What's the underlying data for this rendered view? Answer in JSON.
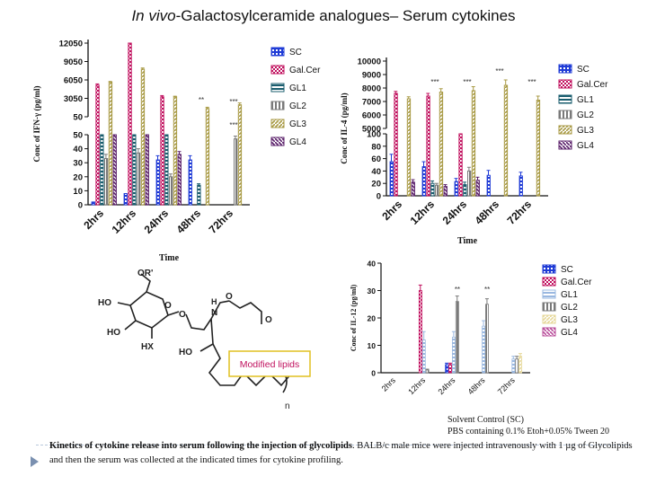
{
  "title": {
    "italic": "In vivo",
    "rest": "-Galactosylceramide analogues– Serum cytokines"
  },
  "colors": {
    "SC": "#1f3bd6",
    "GalCer": "#c0105e",
    "GL1": "#1a5d6e",
    "GL2": "#7a7a7a",
    "GL3": "#a89a44",
    "GL4": "#5a1f6a",
    "GL1_light": "#9ab8e0",
    "GL3_light": "#e6d89a",
    "GL4_light": "#b84b9a"
  },
  "chart_data": [
    {
      "id": "ifn",
      "type": "bar",
      "ylabel": "Conc of IFN-γ (pg/ml)",
      "xlabel": "Time",
      "categories": [
        "2hrs",
        "12hrs",
        "24hrs",
        "48hrs",
        "72hrs"
      ],
      "axis_segments": [
        {
          "range": [
            0,
            50
          ],
          "ticks": [
            "0",
            "10",
            "20",
            "30",
            "40",
            "50"
          ]
        },
        {
          "range": [
            50,
            12050
          ],
          "ticks": [
            "50",
            "3050",
            "6050",
            "9050",
            "12050"
          ]
        }
      ],
      "series": [
        {
          "name": "SC",
          "values": [
            2,
            8,
            32,
            32,
            null
          ],
          "errors": [
            0,
            0,
            3,
            3,
            0
          ]
        },
        {
          "name": "Gal.Cer",
          "values": [
            5200,
            13800,
            3300,
            0,
            null
          ],
          "errors": [
            200,
            300,
            200,
            0,
            0
          ]
        },
        {
          "name": "GL1",
          "values": [
            50,
            50,
            50,
            14,
            null
          ],
          "errors": [
            0,
            0,
            0,
            1,
            0
          ]
        },
        {
          "name": "GL2",
          "values": [
            33,
            37,
            20,
            0,
            47
          ],
          "errors": [
            3,
            3,
            2,
            0,
            2
          ]
        },
        {
          "name": "GL3",
          "values": [
            5700,
            7800,
            3300,
            1400,
            2000
          ],
          "errors": [
            100,
            200,
            100,
            200,
            300
          ]
        },
        {
          "name": "GL4",
          "values": [
            50,
            50,
            36,
            null,
            null
          ],
          "errors": [
            0,
            0,
            2,
            0,
            0
          ]
        }
      ],
      "annotations": [
        {
          "text": "**",
          "category": "48hrs"
        },
        {
          "text": "***",
          "category": "72hrs"
        },
        {
          "text": "***",
          "category": "72hrs"
        }
      ],
      "legend": [
        "SC",
        "Gal.Cer",
        "GL1",
        "GL2",
        "GL3",
        "GL4"
      ]
    },
    {
      "id": "il4",
      "type": "bar",
      "ylabel": "Conc of IL-4 (pg/ml)",
      "xlabel": "Time",
      "categories": [
        "2hrs",
        "12hrs",
        "24hrs",
        "48hrs",
        "72hrs"
      ],
      "axis_segments": [
        {
          "range": [
            0,
            100
          ],
          "ticks": [
            "0",
            "20",
            "40",
            "60",
            "80",
            "100"
          ]
        },
        {
          "range": [
            5000,
            10000
          ],
          "ticks": [
            "5000",
            "6000",
            "7000",
            "8000",
            "9000",
            "10000"
          ]
        }
      ],
      "series": [
        {
          "name": "SC",
          "values": [
            55,
            47,
            23,
            33,
            32
          ],
          "errors": [
            12,
            8,
            5,
            8,
            6
          ]
        },
        {
          "name": "Gal.Cer",
          "values": [
            7600,
            7400,
            100,
            null,
            null
          ],
          "errors": [
            150,
            200,
            0,
            0,
            0
          ]
        },
        {
          "name": "GL1",
          "values": [
            null,
            20,
            18,
            null,
            null
          ],
          "errors": [
            0,
            4,
            4,
            0,
            0
          ]
        },
        {
          "name": "GL2",
          "values": [
            null,
            17,
            40,
            null,
            null
          ],
          "errors": [
            0,
            3,
            6,
            0,
            0
          ]
        },
        {
          "name": "GL3",
          "values": [
            7200,
            7700,
            7800,
            8200,
            7100
          ],
          "errors": [
            150,
            250,
            300,
            400,
            300
          ]
        },
        {
          "name": "GL4",
          "values": [
            22,
            15,
            25,
            null,
            null
          ],
          "errors": [
            4,
            3,
            5,
            0,
            0
          ]
        }
      ],
      "annotations": [
        {
          "text": "***",
          "category": "12hrs"
        },
        {
          "text": "***",
          "category": "24hrs"
        },
        {
          "text": "***",
          "category": "48hrs"
        },
        {
          "text": "***",
          "category": "72hrs"
        }
      ],
      "legend": [
        "SC",
        "Gal.Cer",
        "GL1",
        "GL2",
        "GL3",
        "GL4"
      ]
    },
    {
      "id": "il12",
      "type": "bar",
      "ylabel": "Conc of IL-12 (pg/ml)",
      "xlabel": "",
      "categories": [
        "2hrs",
        "12hrs",
        "24hrs",
        "48hrs",
        "72hrs"
      ],
      "ylim": [
        0,
        40
      ],
      "yticks": [
        "0",
        "10",
        "20",
        "30",
        "40"
      ],
      "series": [
        {
          "name": "SC",
          "values": [
            0,
            0,
            3,
            0,
            0
          ],
          "errors": [
            0,
            0,
            0.5,
            0,
            0
          ]
        },
        {
          "name": "Gal.Cer",
          "values": [
            0,
            30,
            3,
            0,
            0
          ],
          "errors": [
            0,
            2,
            0.5,
            0,
            0
          ]
        },
        {
          "name": "GL1",
          "values": [
            0,
            12,
            13,
            17,
            5
          ],
          "errors": [
            0,
            3,
            2,
            2,
            1
          ]
        },
        {
          "name": "GL2",
          "values": [
            0,
            1,
            26,
            25,
            5
          ],
          "errors": [
            0,
            0.3,
            2,
            2,
            1
          ]
        },
        {
          "name": "GL3",
          "values": [
            0,
            0,
            0,
            0,
            6
          ],
          "errors": [
            0,
            0,
            0,
            0,
            1
          ]
        },
        {
          "name": "GL4",
          "values": [
            0,
            0,
            0,
            0,
            0
          ],
          "errors": [
            0,
            0,
            0,
            0,
            0
          ]
        }
      ],
      "annotations": [
        {
          "text": "**",
          "category": "24hrs"
        },
        {
          "text": "**",
          "category": "48hrs"
        }
      ],
      "legend": [
        "SC",
        "Gal.Cer",
        "GL1",
        "GL2",
        "GL3",
        "GL4"
      ]
    }
  ],
  "structure": {
    "labels": [
      "OR'",
      "HO",
      "HO",
      "HX",
      "O",
      "O",
      "H",
      "N",
      "O",
      "HO",
      "n",
      "O"
    ],
    "box_label": "Modified lipids"
  },
  "solvent_note": {
    "line1": "Solvent Control (SC)",
    "line2": "PBS containing 0.1% Etoh+0.05% Tween 20"
  },
  "caption": {
    "bold": "Kinetics of cytokine release into serum following the injection of glycolipids",
    "rest": ". BALB/c male mice were injected intravenously with 1 µg of Glycolipids and then the serum was collected at the indicated times for cytokine profiling."
  }
}
